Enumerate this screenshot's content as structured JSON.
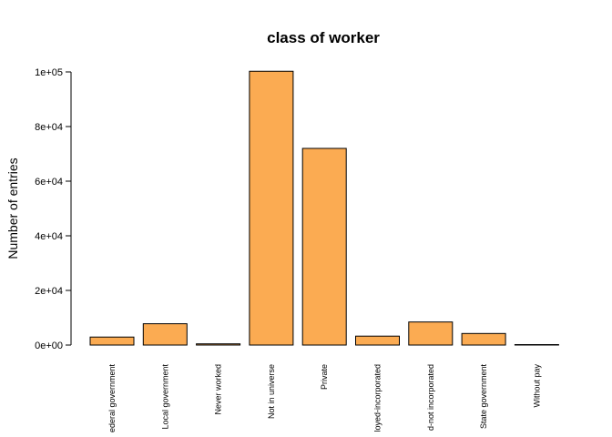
{
  "chart_data": {
    "type": "bar",
    "title": "class of worker",
    "y_label": "Number of entries",
    "categories": [
      "ederal government",
      "Local government",
      "Never worked",
      "Not in universe",
      "Private",
      "loyed-incorporated",
      "d-not incorporated",
      "State government",
      "Without pay"
    ],
    "values": [
      2925,
      7800,
      440,
      100245,
      72000,
      3265,
      8445,
      4227,
      165
    ],
    "color": "#fbab52",
    "ylim": [
      0,
      100000
    ],
    "yticks": [
      {
        "value": 0,
        "label": "0e+00"
      },
      {
        "value": 20000,
        "label": "2e+04"
      },
      {
        "value": 40000,
        "label": "4e+04"
      },
      {
        "value": 60000,
        "label": "6e+04"
      },
      {
        "value": 80000,
        "label": "8e+04"
      },
      {
        "value": 100000,
        "label": "1e+05"
      }
    ]
  }
}
